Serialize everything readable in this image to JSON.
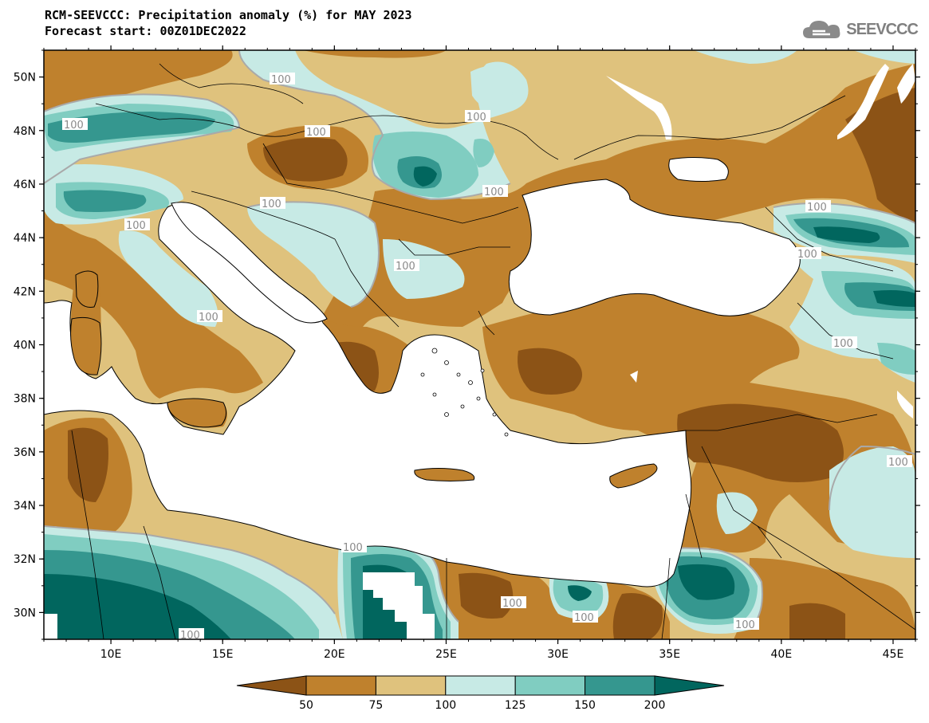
{
  "title_line1": "RCM-SEEVCCC: Precipitation anomaly (%) for MAY 2023",
  "title_line2": "Forecast start: 00Z01DEC2022",
  "logo_text": "SEEVCCC",
  "contour_label": "100",
  "map": {
    "lon_range": [
      7,
      46
    ],
    "lat_range": [
      29,
      51
    ],
    "x_ticks": [
      "10E",
      "15E",
      "20E",
      "25E",
      "30E",
      "35E",
      "40E",
      "45E"
    ],
    "y_ticks": [
      "30N",
      "32N",
      "34N",
      "36N",
      "38N",
      "40N",
      "42N",
      "44N",
      "46N",
      "48N",
      "50N"
    ]
  },
  "colorbar": {
    "labels": [
      "50",
      "75",
      "100",
      "125",
      "150",
      "200"
    ],
    "colors": [
      "#8c5316",
      "#bf812d",
      "#dfc27d",
      "#c7eae5",
      "#80cdc1",
      "#35978f",
      "#01665e"
    ]
  }
}
